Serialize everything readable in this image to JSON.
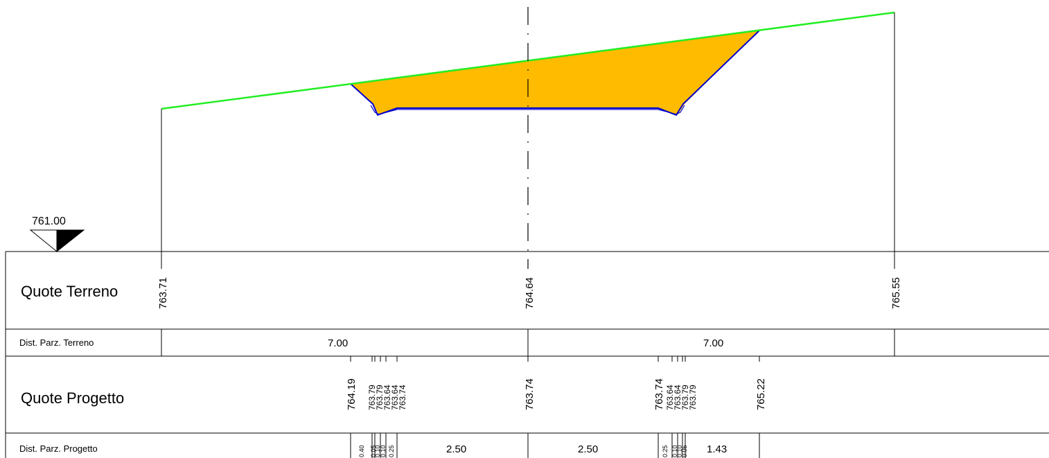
{
  "datum": {
    "label": "761.00"
  },
  "colors": {
    "terrain": "#22ee22",
    "design": "#0000cc",
    "fill": "#ffbb00",
    "lines": "#000000"
  },
  "rows": {
    "terrain_heights": "Quote Terreno",
    "terrain_distances": "Dist. Parz. Terreno",
    "design_heights": "Quote Progetto",
    "design_distances": "Dist. Parz. Progetto"
  },
  "terrain": {
    "heights": [
      "763.71",
      "764.64",
      "765.55"
    ],
    "distances": [
      "7.00",
      "7.00"
    ]
  },
  "design": {
    "left_edge": "764.19",
    "left_ditch": [
      "763.79",
      "763.79",
      "763.64",
      "763.64",
      "763.74"
    ],
    "axis": "763.74",
    "right_ditch": [
      "763.74",
      "763.64",
      "763.64",
      "763.79",
      "763.79"
    ],
    "right_edge": "765.22",
    "distances_small_left": [
      "0.40",
      "0.05",
      "0.10",
      "0.10",
      "0.25"
    ],
    "distances_small_right": [
      "0.25",
      "0.10",
      "0.10",
      "0.05"
    ],
    "distances": [
      "2.50",
      "2.50",
      "1.43"
    ]
  }
}
